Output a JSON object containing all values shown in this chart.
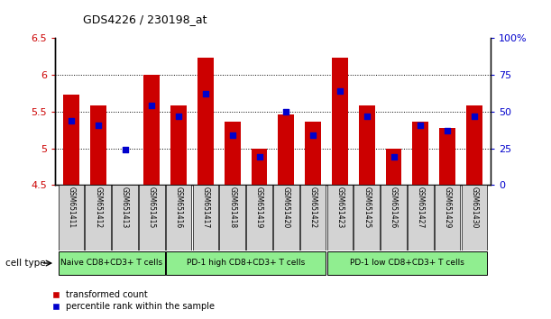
{
  "title": "GDS4226 / 230198_at",
  "samples": [
    "GSM651411",
    "GSM651412",
    "GSM651413",
    "GSM651415",
    "GSM651416",
    "GSM651417",
    "GSM651418",
    "GSM651419",
    "GSM651420",
    "GSM651422",
    "GSM651423",
    "GSM651425",
    "GSM651426",
    "GSM651427",
    "GSM651429",
    "GSM651430"
  ],
  "transformed_count": [
    5.73,
    5.58,
    4.5,
    6.0,
    5.58,
    6.23,
    5.36,
    5.0,
    5.46,
    5.36,
    6.23,
    5.58,
    5.0,
    5.36,
    5.28,
    5.58
  ],
  "percentile_rank": [
    44,
    41,
    24,
    54,
    47,
    62,
    34,
    19,
    50,
    34,
    64,
    47,
    19,
    41,
    37,
    47
  ],
  "ylim_left": [
    4.5,
    6.5
  ],
  "ylim_right": [
    0,
    100
  ],
  "bar_color": "#CC0000",
  "dot_color": "#0000CC",
  "yticks_left": [
    4.5,
    5.0,
    5.5,
    6.0,
    6.5
  ],
  "ytick_labels_left": [
    "4.5",
    "5",
    "5.5",
    "6",
    "6.5"
  ],
  "yticks_right": [
    0,
    25,
    50,
    75,
    100
  ],
  "ytick_labels_right": [
    "0",
    "25",
    "50",
    "75",
    "100%"
  ],
  "tick_color_left": "#CC0000",
  "tick_color_right": "#0000CC",
  "groups": [
    {
      "label": "Naive CD8+CD3+ T cells",
      "start": 0,
      "end": 3
    },
    {
      "label": "PD-1 high CD8+CD3+ T cells",
      "start": 4,
      "end": 9
    },
    {
      "label": "PD-1 low CD8+CD3+ T cells",
      "start": 10,
      "end": 15
    }
  ],
  "green_color": "#90EE90",
  "gray_color": "#D3D3D3",
  "cell_type_label": "cell type",
  "legend_labels": [
    "transformed count",
    "percentile rank within the sample"
  ]
}
